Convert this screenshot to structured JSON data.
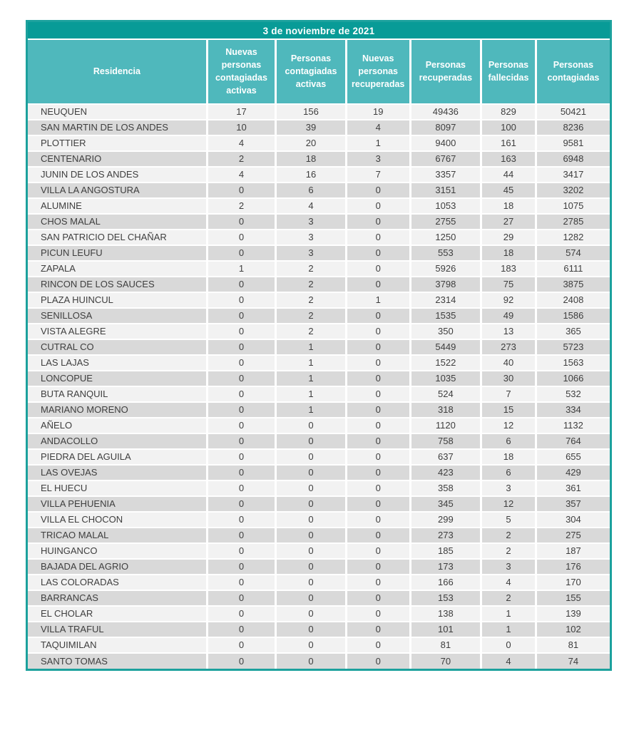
{
  "title": "3 de noviembre de 2021",
  "colors": {
    "title_bg": "#089B97",
    "header_bg": "#4FB8BC",
    "row_light": "#F2F2F2",
    "row_shaded": "#D9D9D9",
    "frame": "#1CA19D",
    "text": "#3E3E3E"
  },
  "table": {
    "columns": [
      "Residencia",
      "Nuevas personas contagiadas activas",
      "Personas contagiadas activas",
      "Nuevas personas recuperadas",
      "Personas recuperadas",
      "Personas fallecidas",
      "Personas contagiadas"
    ],
    "rows": [
      [
        "NEUQUEN",
        17,
        156,
        19,
        49436,
        829,
        50421
      ],
      [
        "SAN MARTIN DE LOS ANDES",
        10,
        39,
        4,
        8097,
        100,
        8236
      ],
      [
        "PLOTTIER",
        4,
        20,
        1,
        9400,
        161,
        9581
      ],
      [
        "CENTENARIO",
        2,
        18,
        3,
        6767,
        163,
        6948
      ],
      [
        "JUNIN DE LOS ANDES",
        4,
        16,
        7,
        3357,
        44,
        3417
      ],
      [
        "VILLA LA ANGOSTURA",
        0,
        6,
        0,
        3151,
        45,
        3202
      ],
      [
        "ALUMINE",
        2,
        4,
        0,
        1053,
        18,
        1075
      ],
      [
        "CHOS MALAL",
        0,
        3,
        0,
        2755,
        27,
        2785
      ],
      [
        "SAN PATRICIO DEL CHAÑAR",
        0,
        3,
        0,
        1250,
        29,
        1282
      ],
      [
        "PICUN LEUFU",
        0,
        3,
        0,
        553,
        18,
        574
      ],
      [
        "ZAPALA",
        1,
        2,
        0,
        5926,
        183,
        6111
      ],
      [
        "RINCON DE LOS SAUCES",
        0,
        2,
        0,
        3798,
        75,
        3875
      ],
      [
        "PLAZA HUINCUL",
        0,
        2,
        1,
        2314,
        92,
        2408
      ],
      [
        "SENILLOSA",
        0,
        2,
        0,
        1535,
        49,
        1586
      ],
      [
        "VISTA ALEGRE",
        0,
        2,
        0,
        350,
        13,
        365
      ],
      [
        "CUTRAL CO",
        0,
        1,
        0,
        5449,
        273,
        5723
      ],
      [
        "LAS LAJAS",
        0,
        1,
        0,
        1522,
        40,
        1563
      ],
      [
        "LONCOPUE",
        0,
        1,
        0,
        1035,
        30,
        1066
      ],
      [
        "BUTA RANQUIL",
        0,
        1,
        0,
        524,
        7,
        532
      ],
      [
        "MARIANO MORENO",
        0,
        1,
        0,
        318,
        15,
        334
      ],
      [
        "AÑELO",
        0,
        0,
        0,
        1120,
        12,
        1132
      ],
      [
        "ANDACOLLO",
        0,
        0,
        0,
        758,
        6,
        764
      ],
      [
        "PIEDRA DEL AGUILA",
        0,
        0,
        0,
        637,
        18,
        655
      ],
      [
        "LAS OVEJAS",
        0,
        0,
        0,
        423,
        6,
        429
      ],
      [
        "EL HUECU",
        0,
        0,
        0,
        358,
        3,
        361
      ],
      [
        "VILLA PEHUENIA",
        0,
        0,
        0,
        345,
        12,
        357
      ],
      [
        "VILLA EL CHOCON",
        0,
        0,
        0,
        299,
        5,
        304
      ],
      [
        "TRICAO MALAL",
        0,
        0,
        0,
        273,
        2,
        275
      ],
      [
        "HUINGANCO",
        0,
        0,
        0,
        185,
        2,
        187
      ],
      [
        "BAJADA DEL AGRIO",
        0,
        0,
        0,
        173,
        3,
        176
      ],
      [
        "LAS COLORADAS",
        0,
        0,
        0,
        166,
        4,
        170
      ],
      [
        "BARRANCAS",
        0,
        0,
        0,
        153,
        2,
        155
      ],
      [
        "EL CHOLAR",
        0,
        0,
        0,
        138,
        1,
        139
      ],
      [
        "VILLA TRAFUL",
        0,
        0,
        0,
        101,
        1,
        102
      ],
      [
        "TAQUIMILAN",
        0,
        0,
        0,
        81,
        0,
        81
      ],
      [
        "SANTO TOMAS",
        0,
        0,
        0,
        70,
        4,
        74
      ]
    ]
  }
}
